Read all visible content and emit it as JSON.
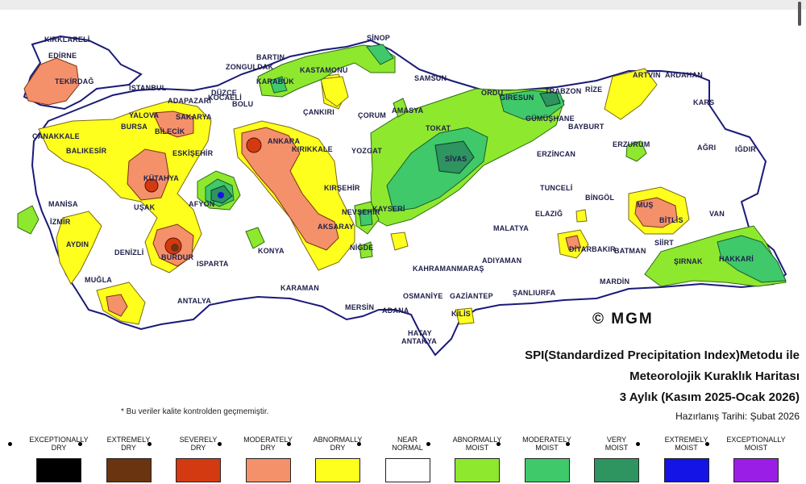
{
  "map": {
    "title_line1": "SPI(Standardized Precipitation Index)Metodu ile",
    "title_line2": "Meteorolojik Kuraklık Haritası",
    "period": "3 Aylık (Kasım 2025-Ocak 2026)",
    "prepared": "Hazırlanış Tarihi: Şubat 2026",
    "logo": "© MGM",
    "note": "* Bu veriler kalite kontrolden geçmemiştir.",
    "cities": [
      "KIRKLARELİ",
      "EDİRNE",
      "TEKİRDAĞ",
      "İSTANBUL",
      "KOCAELİ",
      "SAKARYA",
      "ADAPAZARI",
      "DÜZCE",
      "BOLU",
      "ZONGULDAK",
      "BARTIN",
      "KARABÜK",
      "KASTAMONU",
      "SİNOP",
      "SAMSUN",
      "ORDU",
      "GİRESUN",
      "TRABZON",
      "RİZE",
      "ARTVİN",
      "ARDAHAN",
      "KARS",
      "IĞDIR",
      "AĞRI",
      "ERZURUM",
      "BAYBURT",
      "GÜMÜŞHANE",
      "ERZİNCAN",
      "TUNCELİ",
      "BİNGÖL",
      "MUŞ",
      "BİTLİS",
      "VAN",
      "SİİRT",
      "BATMAN",
      "ŞIRNAK",
      "HAKKARİ",
      "MARDİN",
      "DİYARBAKIR",
      "ELAZIĞ",
      "MALATYA",
      "ADIYAMAN",
      "ŞANLIURFA",
      "GAZİANTEP",
      "KİLİS",
      "OSMANİYE",
      "ADANA",
      "MERSİN",
      "HATAY",
      "ANTAKYA",
      "KAHRAMANMARAŞ",
      "KAYSERİ",
      "SİVAS",
      "TOKAT",
      "AMASYA",
      "ÇORUM",
      "YOZGAT",
      "KIRIKKALE",
      "ANKARA",
      "ÇANKIRI",
      "KIRŞEHİR",
      "NEVŞEHİR",
      "AKSARAY",
      "NİĞDE",
      "KONYA",
      "KARAMAN",
      "ANTALYA",
      "ISPARTA",
      "BURDUR",
      "AFYON",
      "KÜTAHYA",
      "UŞAK",
      "DENİZLİ",
      "MUĞLA",
      "AYDIN",
      "İZMİR",
      "MANİSA",
      "BALIKESİR",
      "ÇANAKKALE",
      "BURSA",
      "BİLECİK",
      "ESKİŞEHİR",
      "YALOVA"
    ]
  },
  "legend": [
    {
      "label": "EXCEPTIONALLY\nDRY",
      "color": "#000000"
    },
    {
      "label": "EXTREMELY\nDRY",
      "color": "#6b3410"
    },
    {
      "label": "SEVERELY\nDRY",
      "color": "#d43a12"
    },
    {
      "label": "MODERATELY\nDRY",
      "color": "#f4916a"
    },
    {
      "label": "ABNORMALLY\nDRY",
      "color": "#ffff1e"
    },
    {
      "label": "NEAR\nNORMAL",
      "color": "#ffffff"
    },
    {
      "label": "ABNORMALLY\nMOIST",
      "color": "#8ee82e"
    },
    {
      "label": "MODERATELY\nMOIST",
      "color": "#3fc96a"
    },
    {
      "label": "VERY\nMOIST",
      "color": "#2e9460"
    },
    {
      "label": "EXTREMELY\nMOIST",
      "color": "#1414e6"
    },
    {
      "label": "EXCEPTIONALLY\nMOIST",
      "color": "#9a1ee6"
    }
  ]
}
